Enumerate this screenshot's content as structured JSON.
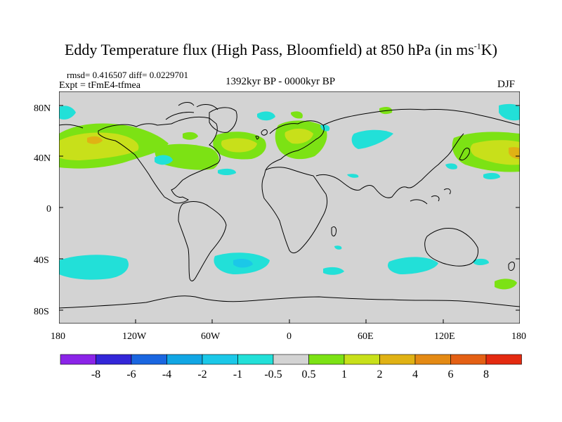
{
  "title": {
    "main": "Eddy Temperature flux (High Pass, Bloomfield) at 850 hPa (in ms",
    "sup": "-1",
    "tail": "K)"
  },
  "stats": {
    "rmsd_line": "rmsd= 0.416507 diff= 0.0229701"
  },
  "experiment": "Expt = tFmE4-tfmea",
  "period": "1392kyr BP - 0000kyr BP",
  "season": "DJF",
  "lat_labels": [
    "80N",
    "40N",
    "0",
    "40S",
    "80S"
  ],
  "lon_labels": [
    "180",
    "120W",
    "60W",
    "0",
    "60E",
    "120E",
    "180"
  ],
  "colorbar": {
    "labels": [
      "-8",
      "-6",
      "-4",
      "-2",
      "-1",
      "-0.5",
      "0.5",
      "1",
      "2",
      "4",
      "6",
      "8"
    ],
    "colors": [
      "#8b24e8",
      "#3326d8",
      "#1a66e0",
      "#11a6e4",
      "#1bc8e8",
      "#22e0d8",
      "#d3d3d3",
      "#7ce214",
      "#c8e01a",
      "#e0b214",
      "#e48a14",
      "#e46014",
      "#e42a10"
    ]
  },
  "map_colors": {
    "background": "#d3d3d3",
    "cyan": "#22e0d8",
    "light_blue": "#1bc8e8",
    "green": "#7ce214",
    "yellow": "#c8e01a",
    "orange": "#e0b214"
  }
}
